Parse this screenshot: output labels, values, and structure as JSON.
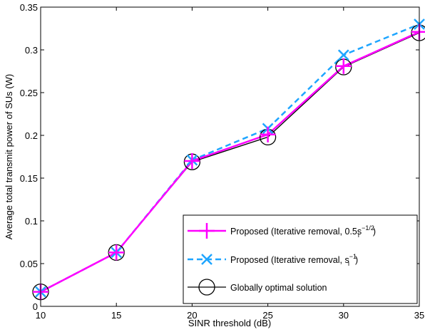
{
  "chart_data": {
    "type": "line",
    "xlabel": "SINR threshold (dB)",
    "ylabel": "Average total transmit power of SUs (W)",
    "xlim": [
      10,
      35
    ],
    "ylim": [
      0,
      0.35
    ],
    "xticks": [
      "10",
      "15",
      "20",
      "25",
      "30",
      "35"
    ],
    "xtick_values": [
      10,
      15,
      20,
      25,
      30,
      35
    ],
    "yticks": [
      "0",
      "0.05",
      "0.1",
      "0.15",
      "0.2",
      "0.25",
      "0.3",
      "0.35"
    ],
    "ytick_values": [
      0,
      0.05,
      0.1,
      0.15,
      0.2,
      0.25,
      0.3,
      0.35
    ],
    "grid": false,
    "legend_position": "bottom-right",
    "x": [
      10,
      15,
      20,
      25,
      30,
      35
    ],
    "series": [
      {
        "name_main": "Proposed (Iterative removal, 0.5s",
        "name_sub": "i",
        "name_sup": "−1/2",
        "name_tail": ")",
        "values": [
          0.017,
          0.063,
          0.17,
          0.201,
          0.281,
          0.321
        ],
        "color": "#ff00ff",
        "line": "solid",
        "marker": "plus"
      },
      {
        "name_main": "Proposed (Iterative removal, s",
        "name_sub": "i",
        "name_sup": "−1",
        "name_tail": ")",
        "values": [
          0.017,
          0.063,
          0.171,
          0.208,
          0.294,
          0.33
        ],
        "color": "#1ea5ff",
        "line": "dashed",
        "marker": "x"
      },
      {
        "name_main": "Globally optimal solution",
        "name_sub": "",
        "name_sup": "",
        "name_tail": "",
        "values": [
          0.017,
          0.063,
          0.169,
          0.198,
          0.28,
          0.32
        ],
        "color": "#000000",
        "line": "solid",
        "marker": "circle"
      }
    ]
  }
}
